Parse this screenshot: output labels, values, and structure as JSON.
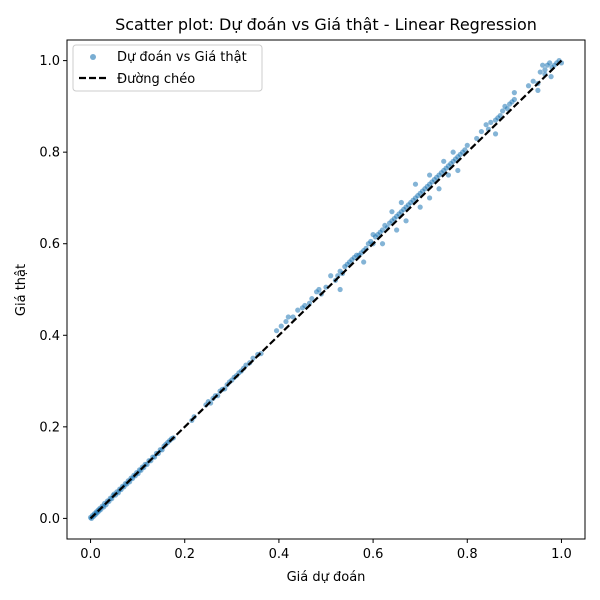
{
  "chart_data": {
    "type": "scatter",
    "title": "Scatter plot: Dự đoán vs Giá thật - Linear Regression",
    "xlabel": "Giá dự đoán",
    "ylabel": "Giá thật",
    "xlim": [
      -0.05,
      1.05
    ],
    "ylim": [
      -0.045,
      1.045
    ],
    "xticks": [
      0.0,
      0.2,
      0.4,
      0.6,
      0.8,
      1.0
    ],
    "yticks": [
      0.0,
      0.2,
      0.4,
      0.6,
      0.8,
      1.0
    ],
    "xtick_labels": [
      "0.0",
      "0.2",
      "0.4",
      "0.6",
      "0.8",
      "1.0"
    ],
    "ytick_labels": [
      "0.0",
      "0.2",
      "0.4",
      "0.6",
      "0.8",
      "1.0"
    ],
    "grid": false,
    "legend": {
      "placement": "top-left",
      "entries": [
        "Dự đoán vs Giá thật",
        "Đường chéo"
      ]
    },
    "colors": {
      "scatter": "#1f77b4",
      "diagonal": "#000000"
    },
    "series": [
      {
        "name": "Dự đoán vs Giá thật",
        "kind": "scatter",
        "points": [
          [
            0.0,
            0.002
          ],
          [
            0.002,
            0.0
          ],
          [
            0.004,
            0.006
          ],
          [
            0.006,
            0.004
          ],
          [
            0.008,
            0.01
          ],
          [
            0.01,
            0.008
          ],
          [
            0.012,
            0.014
          ],
          [
            0.014,
            0.012
          ],
          [
            0.016,
            0.018
          ],
          [
            0.018,
            0.016
          ],
          [
            0.02,
            0.022
          ],
          [
            0.022,
            0.02
          ],
          [
            0.025,
            0.027
          ],
          [
            0.028,
            0.025
          ],
          [
            0.03,
            0.033
          ],
          [
            0.033,
            0.03
          ],
          [
            0.036,
            0.038
          ],
          [
            0.039,
            0.037
          ],
          [
            0.042,
            0.044
          ],
          [
            0.045,
            0.043
          ],
          [
            0.048,
            0.05
          ],
          [
            0.05,
            0.053
          ],
          [
            0.053,
            0.051
          ],
          [
            0.056,
            0.058
          ],
          [
            0.059,
            0.056
          ],
          [
            0.062,
            0.064
          ],
          [
            0.065,
            0.063
          ],
          [
            0.068,
            0.07
          ],
          [
            0.071,
            0.069
          ],
          [
            0.074,
            0.076
          ],
          [
            0.077,
            0.075
          ],
          [
            0.08,
            0.082
          ],
          [
            0.083,
            0.08
          ],
          [
            0.086,
            0.088
          ],
          [
            0.089,
            0.087
          ],
          [
            0.092,
            0.094
          ],
          [
            0.095,
            0.093
          ],
          [
            0.098,
            0.1
          ],
          [
            0.101,
            0.098
          ],
          [
            0.104,
            0.106
          ],
          [
            0.107,
            0.105
          ],
          [
            0.11,
            0.112
          ],
          [
            0.113,
            0.111
          ],
          [
            0.116,
            0.118
          ],
          [
            0.12,
            0.118
          ],
          [
            0.124,
            0.126
          ],
          [
            0.128,
            0.126
          ],
          [
            0.132,
            0.134
          ],
          [
            0.136,
            0.134
          ],
          [
            0.14,
            0.142
          ],
          [
            0.144,
            0.142
          ],
          [
            0.148,
            0.15
          ],
          [
            0.152,
            0.15
          ],
          [
            0.156,
            0.158
          ],
          [
            0.16,
            0.162
          ],
          [
            0.164,
            0.166
          ],
          [
            0.168,
            0.17
          ],
          [
            0.172,
            0.174
          ],
          [
            0.176,
            0.176
          ],
          [
            0.215,
            0.214
          ],
          [
            0.22,
            0.222
          ],
          [
            0.245,
            0.248
          ],
          [
            0.25,
            0.255
          ],
          [
            0.255,
            0.252
          ],
          [
            0.26,
            0.262
          ],
          [
            0.265,
            0.268
          ],
          [
            0.27,
            0.268
          ],
          [
            0.275,
            0.278
          ],
          [
            0.28,
            0.282
          ],
          [
            0.285,
            0.283
          ],
          [
            0.29,
            0.292
          ],
          [
            0.295,
            0.298
          ],
          [
            0.3,
            0.302
          ],
          [
            0.305,
            0.308
          ],
          [
            0.31,
            0.312
          ],
          [
            0.315,
            0.318
          ],
          [
            0.32,
            0.322
          ],
          [
            0.325,
            0.328
          ],
          [
            0.33,
            0.335
          ],
          [
            0.338,
            0.34
          ],
          [
            0.345,
            0.35
          ],
          [
            0.355,
            0.358
          ],
          [
            0.362,
            0.36
          ],
          [
            0.395,
            0.41
          ],
          [
            0.405,
            0.42
          ],
          [
            0.415,
            0.43
          ],
          [
            0.42,
            0.44
          ],
          [
            0.43,
            0.44
          ],
          [
            0.44,
            0.455
          ],
          [
            0.45,
            0.46
          ],
          [
            0.455,
            0.465
          ],
          [
            0.465,
            0.47
          ],
          [
            0.47,
            0.48
          ],
          [
            0.48,
            0.495
          ],
          [
            0.485,
            0.5
          ],
          [
            0.49,
            0.49
          ],
          [
            0.5,
            0.505
          ],
          [
            0.51,
            0.53
          ],
          [
            0.52,
            0.52
          ],
          [
            0.525,
            0.53
          ],
          [
            0.53,
            0.54
          ],
          [
            0.535,
            0.535
          ],
          [
            0.54,
            0.55
          ],
          [
            0.545,
            0.555
          ],
          [
            0.55,
            0.56
          ],
          [
            0.555,
            0.565
          ],
          [
            0.56,
            0.57
          ],
          [
            0.565,
            0.575
          ],
          [
            0.57,
            0.575
          ],
          [
            0.575,
            0.58
          ],
          [
            0.58,
            0.585
          ],
          [
            0.585,
            0.59
          ],
          [
            0.59,
            0.6
          ],
          [
            0.595,
            0.605
          ],
          [
            0.6,
            0.6
          ],
          [
            0.605,
            0.615
          ],
          [
            0.61,
            0.62
          ],
          [
            0.615,
            0.625
          ],
          [
            0.62,
            0.63
          ],
          [
            0.625,
            0.64
          ],
          [
            0.63,
            0.635
          ],
          [
            0.635,
            0.645
          ],
          [
            0.64,
            0.65
          ],
          [
            0.645,
            0.655
          ],
          [
            0.65,
            0.66
          ],
          [
            0.655,
            0.665
          ],
          [
            0.66,
            0.67
          ],
          [
            0.665,
            0.675
          ],
          [
            0.67,
            0.68
          ],
          [
            0.675,
            0.685
          ],
          [
            0.68,
            0.69
          ],
          [
            0.685,
            0.695
          ],
          [
            0.69,
            0.7
          ],
          [
            0.695,
            0.705
          ],
          [
            0.7,
            0.71
          ],
          [
            0.705,
            0.715
          ],
          [
            0.71,
            0.72
          ],
          [
            0.715,
            0.725
          ],
          [
            0.72,
            0.73
          ],
          [
            0.725,
            0.735
          ],
          [
            0.73,
            0.74
          ],
          [
            0.735,
            0.745
          ],
          [
            0.74,
            0.75
          ],
          [
            0.745,
            0.755
          ],
          [
            0.75,
            0.76
          ],
          [
            0.755,
            0.765
          ],
          [
            0.76,
            0.77
          ],
          [
            0.765,
            0.775
          ],
          [
            0.77,
            0.78
          ],
          [
            0.775,
            0.785
          ],
          [
            0.78,
            0.79
          ],
          [
            0.785,
            0.795
          ],
          [
            0.79,
            0.8
          ],
          [
            0.795,
            0.805
          ],
          [
            0.8,
            0.815
          ],
          [
            0.53,
            0.5
          ],
          [
            0.58,
            0.56
          ],
          [
            0.62,
            0.6
          ],
          [
            0.65,
            0.63
          ],
          [
            0.67,
            0.65
          ],
          [
            0.7,
            0.68
          ],
          [
            0.72,
            0.7
          ],
          [
            0.74,
            0.72
          ],
          [
            0.76,
            0.75
          ],
          [
            0.78,
            0.76
          ],
          [
            0.6,
            0.62
          ],
          [
            0.64,
            0.67
          ],
          [
            0.66,
            0.69
          ],
          [
            0.69,
            0.73
          ],
          [
            0.72,
            0.75
          ],
          [
            0.75,
            0.78
          ],
          [
            0.77,
            0.8
          ],
          [
            0.82,
            0.83
          ],
          [
            0.83,
            0.845
          ],
          [
            0.84,
            0.86
          ],
          [
            0.845,
            0.85
          ],
          [
            0.85,
            0.865
          ],
          [
            0.86,
            0.87
          ],
          [
            0.86,
            0.84
          ],
          [
            0.865,
            0.875
          ],
          [
            0.87,
            0.88
          ],
          [
            0.875,
            0.89
          ],
          [
            0.88,
            0.9
          ],
          [
            0.885,
            0.895
          ],
          [
            0.89,
            0.905
          ],
          [
            0.895,
            0.91
          ],
          [
            0.9,
            0.915
          ],
          [
            0.9,
            0.93
          ],
          [
            0.93,
            0.945
          ],
          [
            0.94,
            0.955
          ],
          [
            0.95,
            0.95
          ],
          [
            0.955,
            0.975
          ],
          [
            0.96,
            0.99
          ],
          [
            0.965,
            0.98
          ],
          [
            0.97,
            0.99
          ],
          [
            0.975,
            0.995
          ],
          [
            0.98,
            0.985
          ],
          [
            0.985,
            0.99
          ],
          [
            0.99,
            0.995
          ],
          [
            0.995,
            1.0
          ],
          [
            1.0,
            0.995
          ],
          [
            0.95,
            0.935
          ],
          [
            0.965,
            0.97
          ],
          [
            0.978,
            0.965
          ]
        ]
      },
      {
        "name": "Đường chéo",
        "kind": "line",
        "style": "dashed",
        "x": [
          0.0,
          1.0
        ],
        "y": [
          0.0,
          1.0
        ]
      }
    ]
  }
}
